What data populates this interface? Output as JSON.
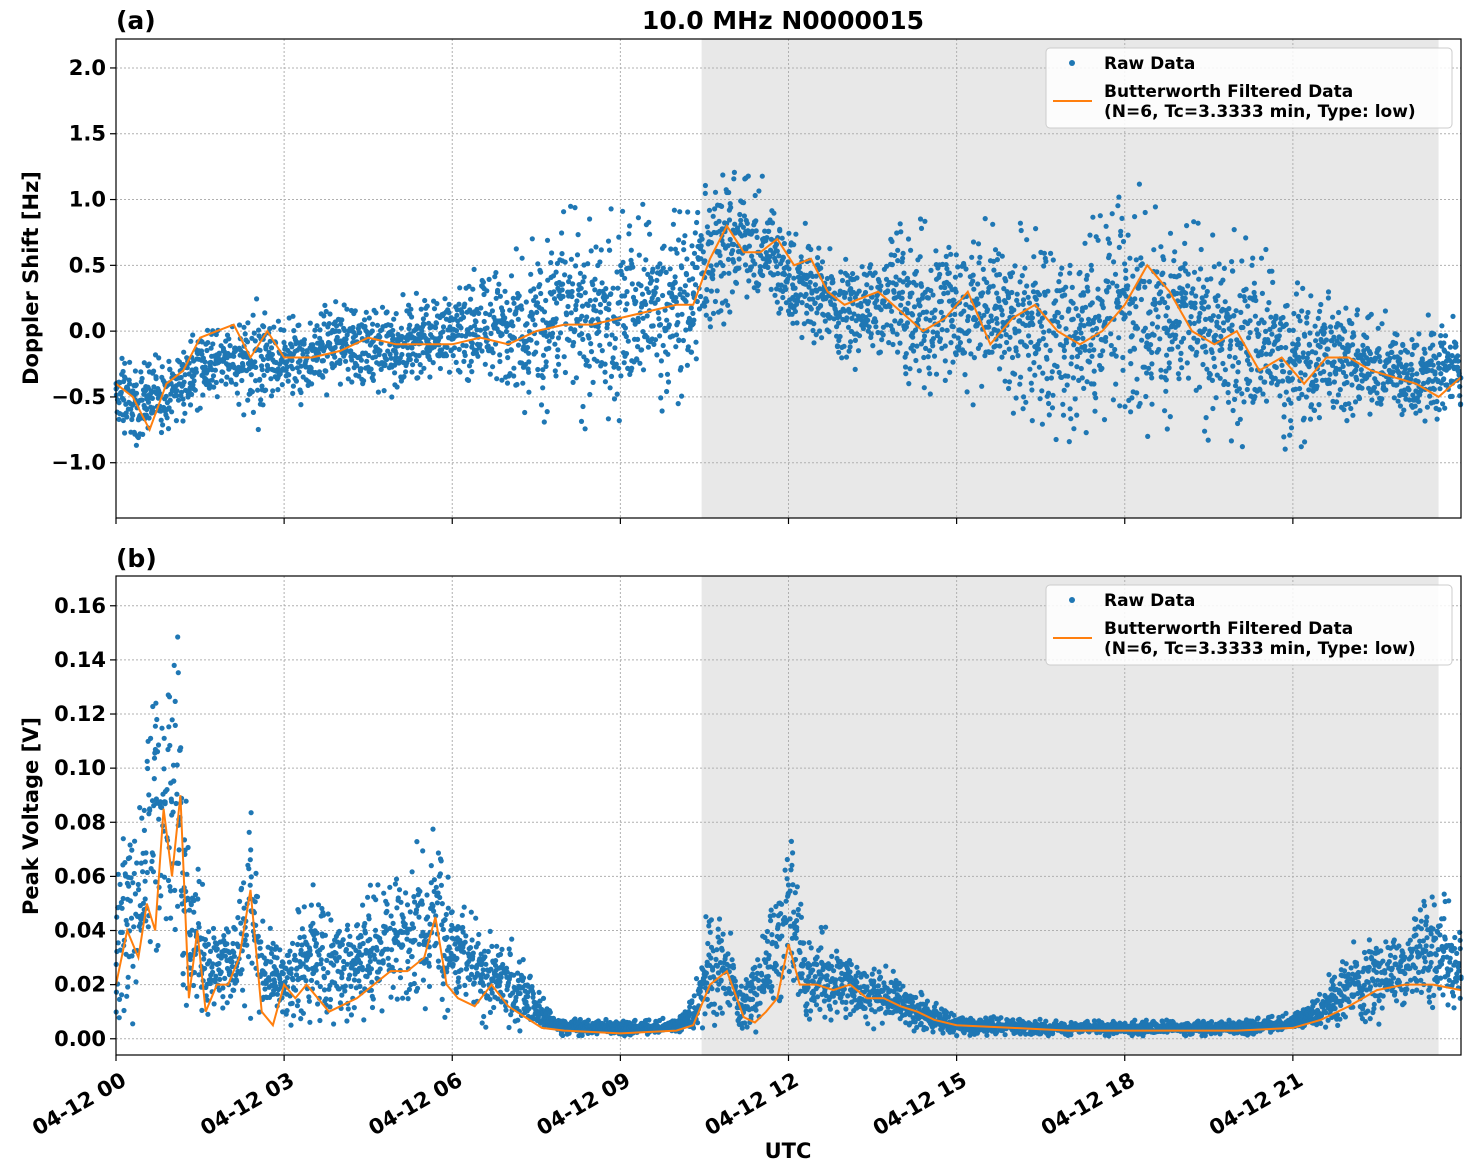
{
  "figure": {
    "title": "10.0 MHz N0000015",
    "xlabel": "UTC",
    "colors": {
      "raw": "#1f77b4",
      "filtered": "#ff7f0e",
      "night_shade": "#e8e8e8",
      "grid": "#b0b0b0"
    }
  },
  "chart_data": [
    {
      "type": "scatter",
      "panel_label": "(a)",
      "title": "10.0 MHz N0000015",
      "xlabel": "",
      "ylabel": "Doppler Shift [Hz]",
      "x_units": "hours since 04-12 00 UTC",
      "xlim": [
        0,
        24
      ],
      "ylim": [
        -1.42,
        2.22
      ],
      "yticks": [
        -1.0,
        -0.5,
        0.0,
        0.5,
        1.0,
        1.5,
        2.0
      ],
      "ytick_labels": [
        "−1.0",
        "−0.5",
        "0.0",
        "0.5",
        "1.0",
        "1.5",
        "2.0"
      ],
      "grid": true,
      "legend_position": "top-right",
      "shaded_region": {
        "x_start": 10.45,
        "x_end": 23.6
      },
      "series": [
        {
          "name": "Raw Data",
          "kind": "scatter",
          "envelope_x": [
            0,
            0.5,
            1,
            1.5,
            2,
            2.5,
            3,
            3.5,
            4,
            4.5,
            5,
            5.5,
            6,
            6.5,
            7,
            7.5,
            8,
            8.5,
            9,
            9.5,
            10,
            10.45,
            10.8,
            11.2,
            11.6,
            12,
            12.4,
            12.8,
            13.2,
            13.6,
            14,
            14.5,
            15,
            15.5,
            16,
            16.5,
            17,
            17.5,
            18,
            18.5,
            19,
            19.5,
            20,
            20.5,
            21,
            21.5,
            22,
            22.5,
            23,
            23.5,
            24
          ],
          "envelope_low": [
            -0.85,
            -0.9,
            -0.75,
            -0.7,
            -0.5,
            -0.9,
            -0.6,
            -0.55,
            -0.5,
            -0.5,
            -0.55,
            -0.4,
            -0.4,
            -0.45,
            -0.5,
            -0.75,
            -0.8,
            -0.75,
            -0.7,
            -0.7,
            -0.6,
            -0.35,
            0.0,
            0.15,
            0.0,
            -0.1,
            -0.1,
            -0.2,
            -0.3,
            -0.3,
            -0.45,
            -0.6,
            -0.6,
            -0.6,
            -0.7,
            -0.8,
            -0.9,
            -0.8,
            -0.8,
            -0.85,
            -0.8,
            -0.85,
            -0.9,
            -0.9,
            -0.95,
            -0.8,
            -0.7,
            -0.75,
            -0.8,
            -0.7,
            -0.65
          ],
          "envelope_high": [
            -0.15,
            -0.2,
            -0.1,
            0.1,
            0.1,
            0.3,
            0.1,
            0.2,
            0.3,
            0.3,
            0.3,
            0.3,
            0.4,
            0.5,
            0.6,
            0.9,
            1.1,
            1.0,
            0.95,
            1.0,
            1.05,
            1.1,
            1.3,
            1.3,
            1.2,
            1.0,
            0.8,
            0.6,
            0.6,
            0.6,
            0.9,
            0.85,
            0.9,
            0.9,
            0.9,
            0.85,
            0.9,
            1.0,
            1.3,
            1.15,
            1.0,
            0.9,
            0.8,
            0.65,
            0.5,
            0.35,
            0.25,
            0.2,
            0.15,
            0.15,
            0.1
          ]
        },
        {
          "name": "Butterworth Filtered Data\n(N=6, Tc=3.3333 min, Type: low)",
          "kind": "line",
          "x": [
            0,
            0.3,
            0.6,
            0.9,
            1.2,
            1.5,
            1.8,
            2.1,
            2.4,
            2.7,
            3.0,
            3.5,
            4.0,
            4.5,
            5.0,
            5.5,
            6.0,
            6.5,
            7.0,
            7.5,
            8.0,
            8.5,
            9.0,
            9.5,
            10.0,
            10.3,
            10.6,
            10.9,
            11.2,
            11.5,
            11.8,
            12.1,
            12.4,
            12.7,
            13.0,
            13.3,
            13.6,
            14.0,
            14.4,
            14.8,
            15.2,
            15.6,
            16.0,
            16.4,
            16.8,
            17.2,
            17.6,
            18.0,
            18.4,
            18.8,
            19.2,
            19.6,
            20.0,
            20.4,
            20.8,
            21.2,
            21.6,
            22.0,
            22.4,
            22.8,
            23.2,
            23.6,
            24.0
          ],
          "y": [
            -0.4,
            -0.5,
            -0.75,
            -0.4,
            -0.3,
            -0.05,
            0.0,
            0.05,
            -0.2,
            0.0,
            -0.2,
            -0.2,
            -0.15,
            -0.05,
            -0.1,
            -0.1,
            -0.1,
            -0.05,
            -0.1,
            0.0,
            0.05,
            0.05,
            0.1,
            0.15,
            0.2,
            0.2,
            0.55,
            0.8,
            0.6,
            0.6,
            0.7,
            0.5,
            0.55,
            0.3,
            0.2,
            0.25,
            0.3,
            0.15,
            0.0,
            0.1,
            0.3,
            -0.1,
            0.1,
            0.2,
            0.0,
            -0.1,
            0.0,
            0.2,
            0.5,
            0.3,
            0.0,
            -0.1,
            0.0,
            -0.3,
            -0.2,
            -0.4,
            -0.2,
            -0.2,
            -0.3,
            -0.35,
            -0.4,
            -0.5,
            -0.35
          ]
        }
      ]
    },
    {
      "type": "scatter",
      "panel_label": "(b)",
      "title": "",
      "xlabel": "UTC",
      "ylabel": "Peak Voltage [V]",
      "x_units": "hours since 04-12 00 UTC",
      "xlim": [
        0,
        24
      ],
      "ylim": [
        -0.006,
        0.171
      ],
      "yticks": [
        0.0,
        0.02,
        0.04,
        0.06,
        0.08,
        0.1,
        0.12,
        0.14,
        0.16
      ],
      "ytick_labels": [
        "0.00",
        "0.02",
        "0.04",
        "0.06",
        "0.08",
        "0.10",
        "0.12",
        "0.14",
        "0.16"
      ],
      "xticks": [
        0,
        3,
        6,
        9,
        12,
        15,
        18,
        21
      ],
      "xtick_labels": [
        "04-12 00",
        "04-12 03",
        "04-12 06",
        "04-12 09",
        "04-12 12",
        "04-12 15",
        "04-12 18",
        "04-12 21"
      ],
      "grid": true,
      "legend_position": "top-right",
      "shaded_region": {
        "x_start": 10.45,
        "x_end": 23.6
      },
      "series": [
        {
          "name": "Raw Data",
          "kind": "scatter",
          "envelope_x": [
            0,
            0.3,
            0.5,
            0.7,
            0.9,
            1.1,
            1.3,
            1.5,
            1.8,
            2.1,
            2.4,
            2.6,
            3.0,
            3.5,
            4.0,
            4.5,
            5.0,
            5.5,
            5.8,
            6.0,
            6.5,
            7.0,
            7.4,
            7.7,
            8.0,
            9.0,
            10.0,
            10.3,
            10.6,
            10.9,
            11.2,
            11.5,
            11.8,
            12.0,
            12.3,
            12.7,
            13.0,
            13.5,
            14.0,
            14.5,
            15.0,
            16.0,
            17.0,
            18.0,
            19.0,
            20.0,
            21.0,
            21.5,
            22.0,
            22.5,
            23.0,
            23.5,
            24.0
          ],
          "envelope_low": [
            0.005,
            0.005,
            0.01,
            0.01,
            0.015,
            0.01,
            0.005,
            0.005,
            0.005,
            0.005,
            0.005,
            0.003,
            0.003,
            0.003,
            0.005,
            0.005,
            0.008,
            0.01,
            0.005,
            0.004,
            0.004,
            0.003,
            0.002,
            0.001,
            0.001,
            0.001,
            0.001,
            0.001,
            0.003,
            0.005,
            0.003,
            0.002,
            0.005,
            0.005,
            0.005,
            0.004,
            0.003,
            0.003,
            0.002,
            0.002,
            0.001,
            0.001,
            0.001,
            0.001,
            0.001,
            0.001,
            0.002,
            0.003,
            0.005,
            0.005,
            0.008,
            0.008,
            0.008
          ],
          "envelope_high": [
            0.07,
            0.09,
            0.1,
            0.16,
            0.13,
            0.157,
            0.08,
            0.06,
            0.045,
            0.05,
            0.1,
            0.045,
            0.04,
            0.06,
            0.05,
            0.06,
            0.065,
            0.08,
            0.09,
            0.06,
            0.045,
            0.04,
            0.025,
            0.012,
            0.008,
            0.007,
            0.008,
            0.02,
            0.055,
            0.045,
            0.02,
            0.04,
            0.06,
            0.085,
            0.04,
            0.042,
            0.035,
            0.03,
            0.025,
            0.015,
            0.01,
            0.008,
            0.007,
            0.007,
            0.007,
            0.007,
            0.01,
            0.02,
            0.035,
            0.04,
            0.04,
            0.06,
            0.045
          ]
        },
        {
          "name": "Butterworth Filtered Data\n(N=6, Tc=3.3333 min, Type: low)",
          "kind": "line",
          "x": [
            0,
            0.2,
            0.4,
            0.55,
            0.7,
            0.85,
            1.0,
            1.15,
            1.3,
            1.45,
            1.6,
            1.8,
            2.0,
            2.2,
            2.4,
            2.6,
            2.8,
            3.0,
            3.2,
            3.4,
            3.6,
            3.8,
            4.0,
            4.3,
            4.6,
            4.9,
            5.2,
            5.5,
            5.7,
            5.9,
            6.1,
            6.4,
            6.7,
            7.0,
            7.3,
            7.6,
            8.0,
            9.0,
            10.0,
            10.3,
            10.6,
            10.9,
            11.2,
            11.4,
            11.6,
            11.8,
            12.0,
            12.2,
            12.5,
            12.8,
            13.1,
            13.4,
            13.7,
            14.0,
            14.3,
            14.6,
            15.0,
            16.0,
            17.0,
            18.0,
            19.0,
            20.0,
            21.0,
            21.5,
            22.0,
            22.5,
            23.0,
            23.5,
            24.0
          ],
          "y": [
            0.02,
            0.04,
            0.03,
            0.05,
            0.04,
            0.085,
            0.06,
            0.09,
            0.015,
            0.04,
            0.01,
            0.02,
            0.02,
            0.03,
            0.055,
            0.01,
            0.005,
            0.02,
            0.015,
            0.02,
            0.015,
            0.01,
            0.012,
            0.015,
            0.02,
            0.025,
            0.025,
            0.03,
            0.045,
            0.02,
            0.015,
            0.012,
            0.02,
            0.012,
            0.008,
            0.004,
            0.003,
            0.002,
            0.003,
            0.005,
            0.02,
            0.025,
            0.008,
            0.006,
            0.01,
            0.015,
            0.035,
            0.02,
            0.02,
            0.018,
            0.02,
            0.015,
            0.015,
            0.012,
            0.01,
            0.007,
            0.005,
            0.004,
            0.003,
            0.003,
            0.003,
            0.003,
            0.004,
            0.007,
            0.012,
            0.018,
            0.02,
            0.02,
            0.018
          ]
        }
      ]
    }
  ]
}
